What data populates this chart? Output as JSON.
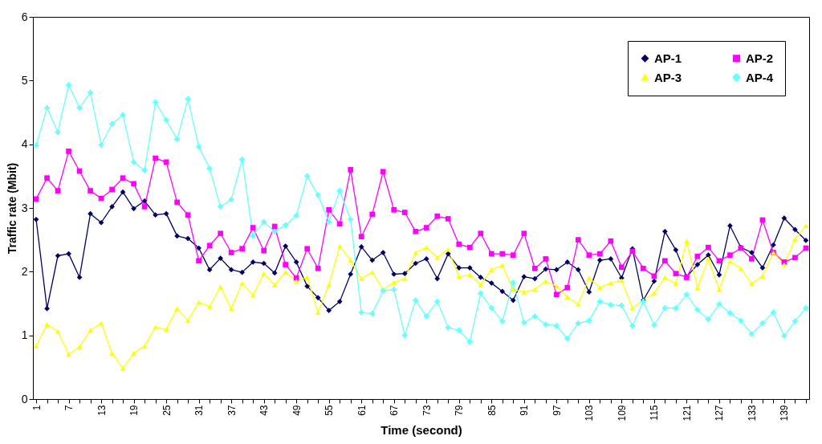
{
  "chart_data": {
    "type": "line",
    "xlabel": "Time (second)",
    "ylabel": "Traffic rate (Mbit)",
    "categories": [
      "1",
      null,
      null,
      "7",
      null,
      null,
      "13",
      null,
      null,
      "19",
      null,
      null,
      "25",
      null,
      null,
      "31",
      null,
      null,
      "37",
      null,
      null,
      "43",
      null,
      null,
      "49",
      null,
      null,
      "55",
      null,
      null,
      "61",
      null,
      null,
      "67",
      null,
      null,
      "73",
      null,
      null,
      "79",
      null,
      null,
      "85",
      null,
      null,
      "91",
      null,
      null,
      "97",
      null,
      null,
      "103",
      null,
      null,
      "109",
      null,
      null,
      "115",
      null,
      null,
      "121",
      null,
      null,
      "127",
      null,
      null,
      "133",
      null,
      null,
      "139",
      null,
      null
    ],
    "series": [
      {
        "name": "AP-1",
        "color": "#000066",
        "marker": "diamond",
        "values": [
          2.82,
          1.42,
          2.25,
          2.28,
          1.91,
          2.91,
          2.77,
          3.02,
          3.25,
          2.99,
          3.11,
          2.89,
          2.91,
          2.56,
          2.52,
          2.37,
          2.03,
          2.21,
          2.03,
          1.99,
          2.15,
          2.13,
          1.98,
          2.4,
          2.15,
          1.77,
          1.59,
          1.39,
          1.53,
          1.96,
          2.39,
          2.18,
          2.3,
          1.96,
          1.97,
          2.13,
          2.2,
          1.89,
          2.28,
          2.06,
          2.06,
          1.91,
          1.82,
          1.69,
          1.55,
          1.92,
          1.89,
          2.04,
          2.03,
          2.15,
          2.03,
          1.68,
          2.18,
          2.2,
          1.9,
          2.36,
          1.55,
          1.85,
          2.63,
          2.34,
          1.92,
          2.11,
          2.26,
          1.95,
          2.72,
          2.38,
          2.3,
          2.06,
          2.42,
          2.84,
          2.66,
          2.49
        ]
      },
      {
        "name": "AP-2",
        "color": "#ff00ff",
        "marker": "square",
        "values": [
          3.14,
          3.47,
          3.27,
          3.89,
          3.58,
          3.27,
          3.15,
          3.29,
          3.47,
          3.38,
          3.02,
          3.78,
          3.72,
          3.09,
          2.89,
          2.17,
          2.41,
          2.6,
          2.3,
          2.36,
          2.69,
          2.33,
          2.71,
          2.11,
          1.9,
          2.36,
          2.05,
          2.97,
          2.75,
          3.6,
          2.55,
          2.9,
          3.57,
          2.97,
          2.93,
          2.63,
          2.69,
          2.87,
          2.83,
          2.43,
          2.38,
          2.6,
          2.28,
          2.28,
          2.26,
          2.6,
          2.05,
          2.2,
          1.64,
          1.75,
          2.5,
          2.26,
          2.28,
          2.48,
          2.07,
          2.32,
          2.05,
          1.93,
          2.17,
          1.97,
          1.91,
          2.24,
          2.38,
          2.17,
          2.26,
          2.37,
          2.2,
          2.81,
          2.3,
          2.15,
          2.22,
          2.37
        ]
      },
      {
        "name": "AP-3",
        "color": "#ffff00",
        "marker": "triangle",
        "values": [
          0.83,
          1.17,
          1.06,
          0.7,
          0.82,
          1.08,
          1.19,
          0.72,
          0.48,
          0.72,
          0.83,
          1.13,
          1.09,
          1.42,
          1.23,
          1.52,
          1.45,
          1.76,
          1.42,
          1.82,
          1.63,
          1.97,
          1.79,
          1.99,
          1.85,
          1.91,
          1.36,
          1.79,
          2.4,
          2.18,
          1.89,
          1.99,
          1.72,
          1.83,
          1.89,
          2.3,
          2.38,
          2.22,
          2.35,
          1.92,
          1.95,
          1.79,
          2.03,
          2.1,
          1.72,
          1.68,
          1.72,
          1.85,
          1.77,
          1.6,
          1.49,
          1.9,
          1.75,
          1.82,
          1.86,
          1.43,
          1.55,
          1.66,
          1.91,
          1.81,
          2.48,
          1.75,
          2.2,
          1.72,
          2.16,
          2.05,
          1.81,
          1.93,
          2.3,
          2.11,
          2.51,
          2.72
        ]
      },
      {
        "name": "AP-4",
        "color": "#66ffff",
        "marker": "cross",
        "values": [
          3.98,
          4.57,
          4.19,
          4.93,
          4.57,
          4.81,
          3.99,
          4.32,
          4.46,
          3.72,
          3.59,
          4.66,
          4.38,
          4.08,
          4.71,
          3.96,
          3.62,
          3.02,
          3.13,
          3.76,
          2.56,
          2.78,
          2.63,
          2.73,
          2.88,
          3.5,
          3.2,
          2.78,
          3.27,
          2.82,
          1.36,
          1.34,
          1.7,
          1.72,
          1.0,
          1.55,
          1.3,
          1.53,
          1.12,
          1.08,
          0.9,
          1.66,
          1.43,
          1.22,
          1.83,
          1.2,
          1.3,
          1.17,
          1.15,
          0.95,
          1.19,
          1.23,
          1.53,
          1.48,
          1.47,
          1.15,
          1.53,
          1.16,
          1.43,
          1.43,
          1.64,
          1.4,
          1.25,
          1.49,
          1.35,
          1.23,
          1.02,
          1.19,
          1.36,
          0.99,
          1.22,
          1.43
        ]
      }
    ],
    "ylim": [
      0,
      6
    ],
    "yticks": [
      0,
      1,
      2,
      3,
      4,
      5,
      6
    ],
    "legend": "top right",
    "line_style": "solid"
  }
}
